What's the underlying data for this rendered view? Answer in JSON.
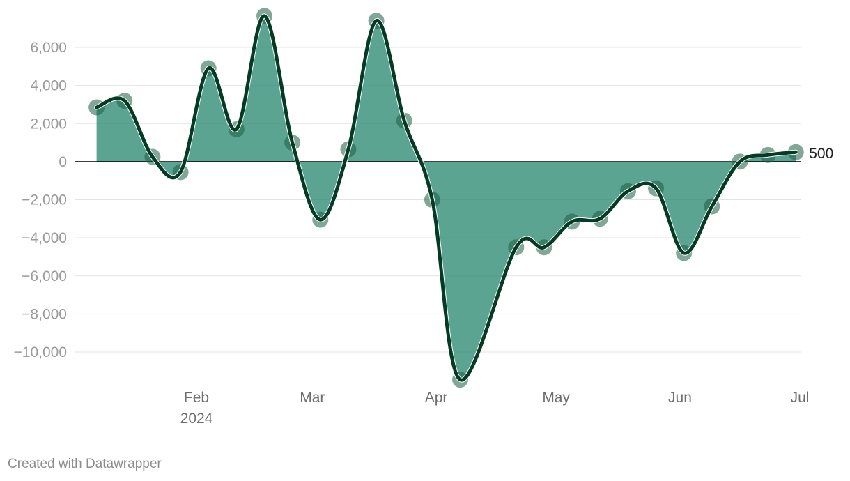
{
  "chart_data": {
    "type": "area",
    "title": "",
    "xlabel": "",
    "ylabel": "",
    "x_ticks": [
      {
        "date": "2024-02-01",
        "label": "Feb",
        "sublabel": "2024"
      },
      {
        "date": "2024-03-01",
        "label": "Mar"
      },
      {
        "date": "2024-04-01",
        "label": "Apr"
      },
      {
        "date": "2024-05-01",
        "label": "May"
      },
      {
        "date": "2024-06-01",
        "label": "Jun"
      },
      {
        "date": "2024-07-01",
        "label": "Jul"
      }
    ],
    "y_ticks": [
      {
        "value": 6000,
        "label": "6,000"
      },
      {
        "value": 4000,
        "label": "4,000"
      },
      {
        "value": 2000,
        "label": "2,000"
      },
      {
        "value": 0,
        "label": "0"
      },
      {
        "value": -2000,
        "label": "−2,000"
      },
      {
        "value": -4000,
        "label": "−4,000"
      },
      {
        "value": -6000,
        "label": "−6,000"
      },
      {
        "value": -8000,
        "label": "−8,000"
      },
      {
        "value": -10000,
        "label": "−10,000"
      }
    ],
    "xlim": [
      "2024-01-01",
      "2024-07-01"
    ],
    "ylim": [
      -11500,
      7700
    ],
    "grid": true,
    "series": [
      {
        "points": [
          {
            "x": "2024-01-07",
            "y": 2850
          },
          {
            "x": "2024-01-14",
            "y": 3200
          },
          {
            "x": "2024-01-21",
            "y": 250
          },
          {
            "x": "2024-01-28",
            "y": -550
          },
          {
            "x": "2024-02-04",
            "y": 4900
          },
          {
            "x": "2024-02-11",
            "y": 1700
          },
          {
            "x": "2024-02-18",
            "y": 7650
          },
          {
            "x": "2024-02-25",
            "y": 1000
          },
          {
            "x": "2024-03-03",
            "y": -3050
          },
          {
            "x": "2024-03-10",
            "y": 650
          },
          {
            "x": "2024-03-17",
            "y": 7400
          },
          {
            "x": "2024-03-24",
            "y": 2150
          },
          {
            "x": "2024-03-31",
            "y": -2000
          },
          {
            "x": "2024-04-07",
            "y": -11450
          },
          {
            "x": "2024-04-21",
            "y": -4500
          },
          {
            "x": "2024-04-28",
            "y": -4500
          },
          {
            "x": "2024-05-05",
            "y": -3150
          },
          {
            "x": "2024-05-12",
            "y": -3000
          },
          {
            "x": "2024-05-19",
            "y": -1550
          },
          {
            "x": "2024-05-26",
            "y": -1400
          },
          {
            "x": "2024-06-02",
            "y": -4800
          },
          {
            "x": "2024-06-09",
            "y": -2350
          },
          {
            "x": "2024-06-16",
            "y": 0
          },
          {
            "x": "2024-06-23",
            "y": 350
          },
          {
            "x": "2024-06-30",
            "y": 500
          }
        ],
        "end_label": "500"
      }
    ],
    "colors": {
      "area": "#2d8a72",
      "line": "#053a25",
      "dot": "#1c5e46",
      "grid": "#e3e3e3",
      "zero_line": "#000000"
    }
  },
  "footer": {
    "credit": "Created with Datawrapper"
  }
}
